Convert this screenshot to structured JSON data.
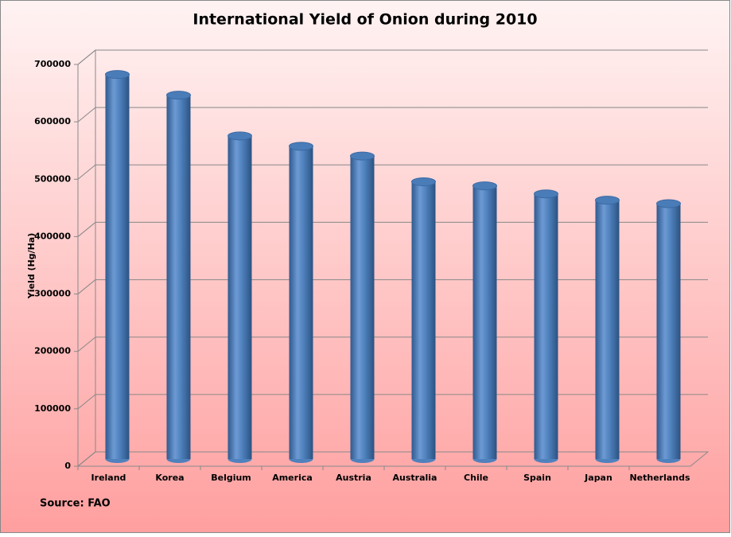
{
  "chart_data": {
    "type": "bar",
    "title": "International Yield of Onion during 2010",
    "y_label": "Yield  (Hg/Ha)",
    "source": "Source: FAO",
    "categories": [
      "Ireland",
      "Korea",
      "Belgium",
      "America",
      "Austria",
      "Australia",
      "Chile",
      "Spain",
      "Japan",
      "Netherlands"
    ],
    "values": [
      670000,
      634000,
      563000,
      545000,
      528000,
      483000,
      476000,
      462000,
      451000,
      445000
    ],
    "color": "#4f81bd",
    "ylim": [
      0,
      700000
    ],
    "yticks": [
      0,
      100000,
      200000,
      300000,
      400000,
      500000,
      600000,
      700000
    ],
    "grid": true
  }
}
